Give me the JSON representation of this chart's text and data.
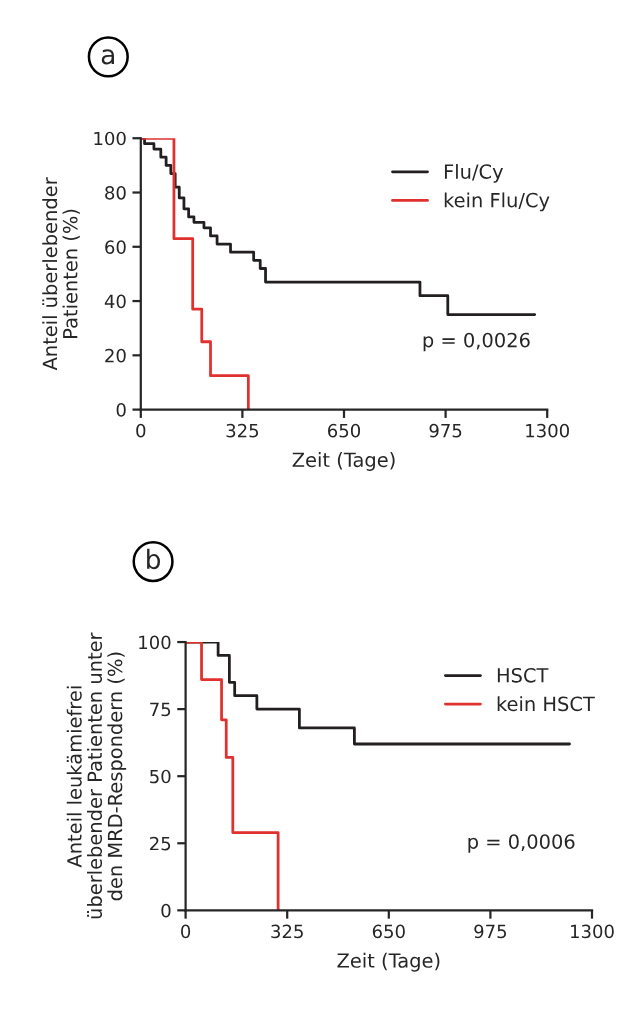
{
  "chart_data": [
    {
      "type": "step",
      "title": "a",
      "xlabel": "Zeit (Tage)",
      "ylabel": "Anteil überlebender\nPatienten (%)",
      "xlim": [
        0,
        1300
      ],
      "xticks": [
        0,
        325,
        650,
        975,
        1300
      ],
      "ylim": [
        0,
        100
      ],
      "yticks": [
        0,
        20,
        40,
        60,
        80,
        100
      ],
      "grid": false,
      "legend": "top right",
      "annotations": [
        "p = 0,0026"
      ],
      "series": [
        {
          "name": "Flu/Cy",
          "color": "#231f20",
          "x": [
            0,
            12,
            42,
            64,
            81,
            96,
            110,
            123,
            138,
            153,
            170,
            202,
            223,
            244,
            287,
            361,
            382,
            399,
            893,
            982,
            1260
          ],
          "values": [
            100,
            98,
            96,
            93,
            90,
            87,
            82,
            78,
            74,
            71,
            69,
            67,
            64,
            61,
            58,
            55,
            52,
            47,
            42,
            35,
            35
          ]
        },
        {
          "name": "kein Flu/Cy",
          "color": "#e0312f",
          "x": [
            0,
            106,
            166,
            195,
            223,
            344
          ],
          "values": [
            100,
            63,
            37,
            25,
            12.5,
            0
          ]
        }
      ]
    },
    {
      "type": "step",
      "title": "b",
      "xlabel": "Zeit (Tage)",
      "ylabel": "Anteil leukämiefrei\nüberlebender Patienten unter\nden MRD-Respondern (%)",
      "xlim": [
        0,
        1300
      ],
      "xticks": [
        0,
        325,
        650,
        975,
        1300
      ],
      "ylim": [
        0,
        100
      ],
      "yticks": [
        0,
        25,
        50,
        75,
        100
      ],
      "grid": false,
      "legend": "top right",
      "annotations": [
        "p = 0,0006"
      ],
      "series": [
        {
          "name": "HSCT",
          "color": "#231f20",
          "x": [
            0,
            104,
            140,
            157,
            228,
            364,
            540,
            1228
          ],
          "values": [
            100,
            95,
            85,
            80,
            75,
            68,
            62,
            62
          ]
        },
        {
          "name": "kein HSCT",
          "color": "#e0312f",
          "x": [
            0,
            51,
            115,
            130,
            151,
            296
          ],
          "values": [
            100,
            86,
            71,
            57,
            29,
            0
          ]
        }
      ]
    }
  ]
}
